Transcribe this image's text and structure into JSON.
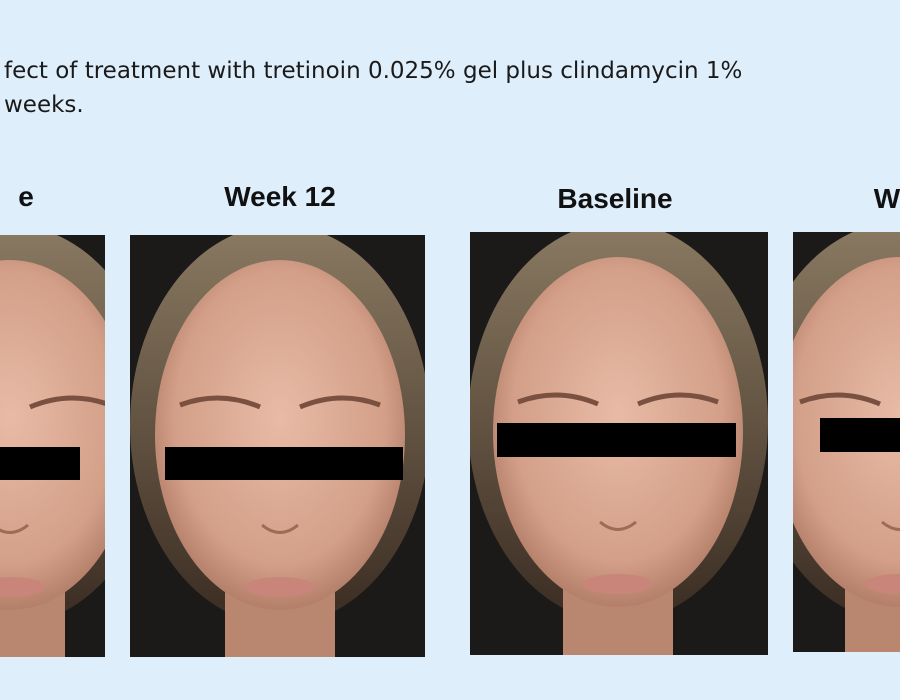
{
  "caption": {
    "line1": "fect of treatment with tretinoin 0.025% gel plus clindamycin 1%",
    "line2": "weeks."
  },
  "panels": [
    {
      "label": "e"
    },
    {
      "label": "Week 12"
    },
    {
      "label": "Baseline"
    },
    {
      "label": "W"
    }
  ]
}
